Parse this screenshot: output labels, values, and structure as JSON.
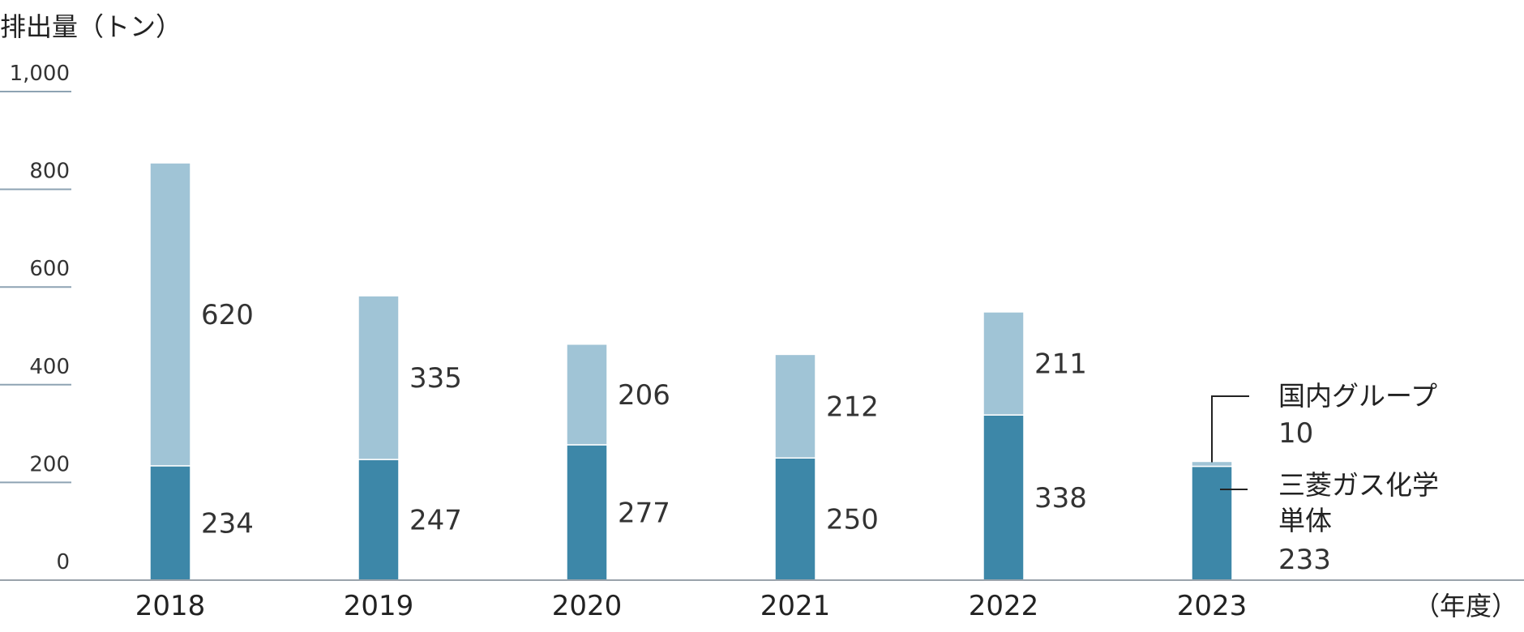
{
  "chart_data": {
    "type": "bar",
    "stacked": true,
    "ylabel": "排出量（トン）",
    "xlabel": "（年度）",
    "ylim": [
      0,
      1000
    ],
    "yticks": [
      {
        "value": 0,
        "label": "0"
      },
      {
        "value": 200,
        "label": "200"
      },
      {
        "value": 400,
        "label": "400"
      },
      {
        "value": 600,
        "label": "600"
      },
      {
        "value": 800,
        "label": "800"
      },
      {
        "value": 1000,
        "label": "1,000"
      }
    ],
    "categories": [
      "2018",
      "2019",
      "2020",
      "2021",
      "2022",
      "2023"
    ],
    "series": [
      {
        "name": "三菱ガス化学単体",
        "name_lines": [
          "三菱ガス化学",
          "単体"
        ],
        "color": "#3d87a8",
        "values": [
          234,
          247,
          277,
          250,
          338,
          233
        ],
        "value_labels": [
          "234",
          "247",
          "277",
          "250",
          "338",
          "233"
        ]
      },
      {
        "name": "国内グループ",
        "name_lines": [
          "国内グループ"
        ],
        "color": "#a0c4d6",
        "values": [
          620,
          335,
          206,
          212,
          211,
          10
        ],
        "value_labels": [
          "620",
          "335",
          "206",
          "212",
          "211",
          "10"
        ]
      }
    ],
    "grid": false,
    "legend": "annotation at last bar"
  }
}
